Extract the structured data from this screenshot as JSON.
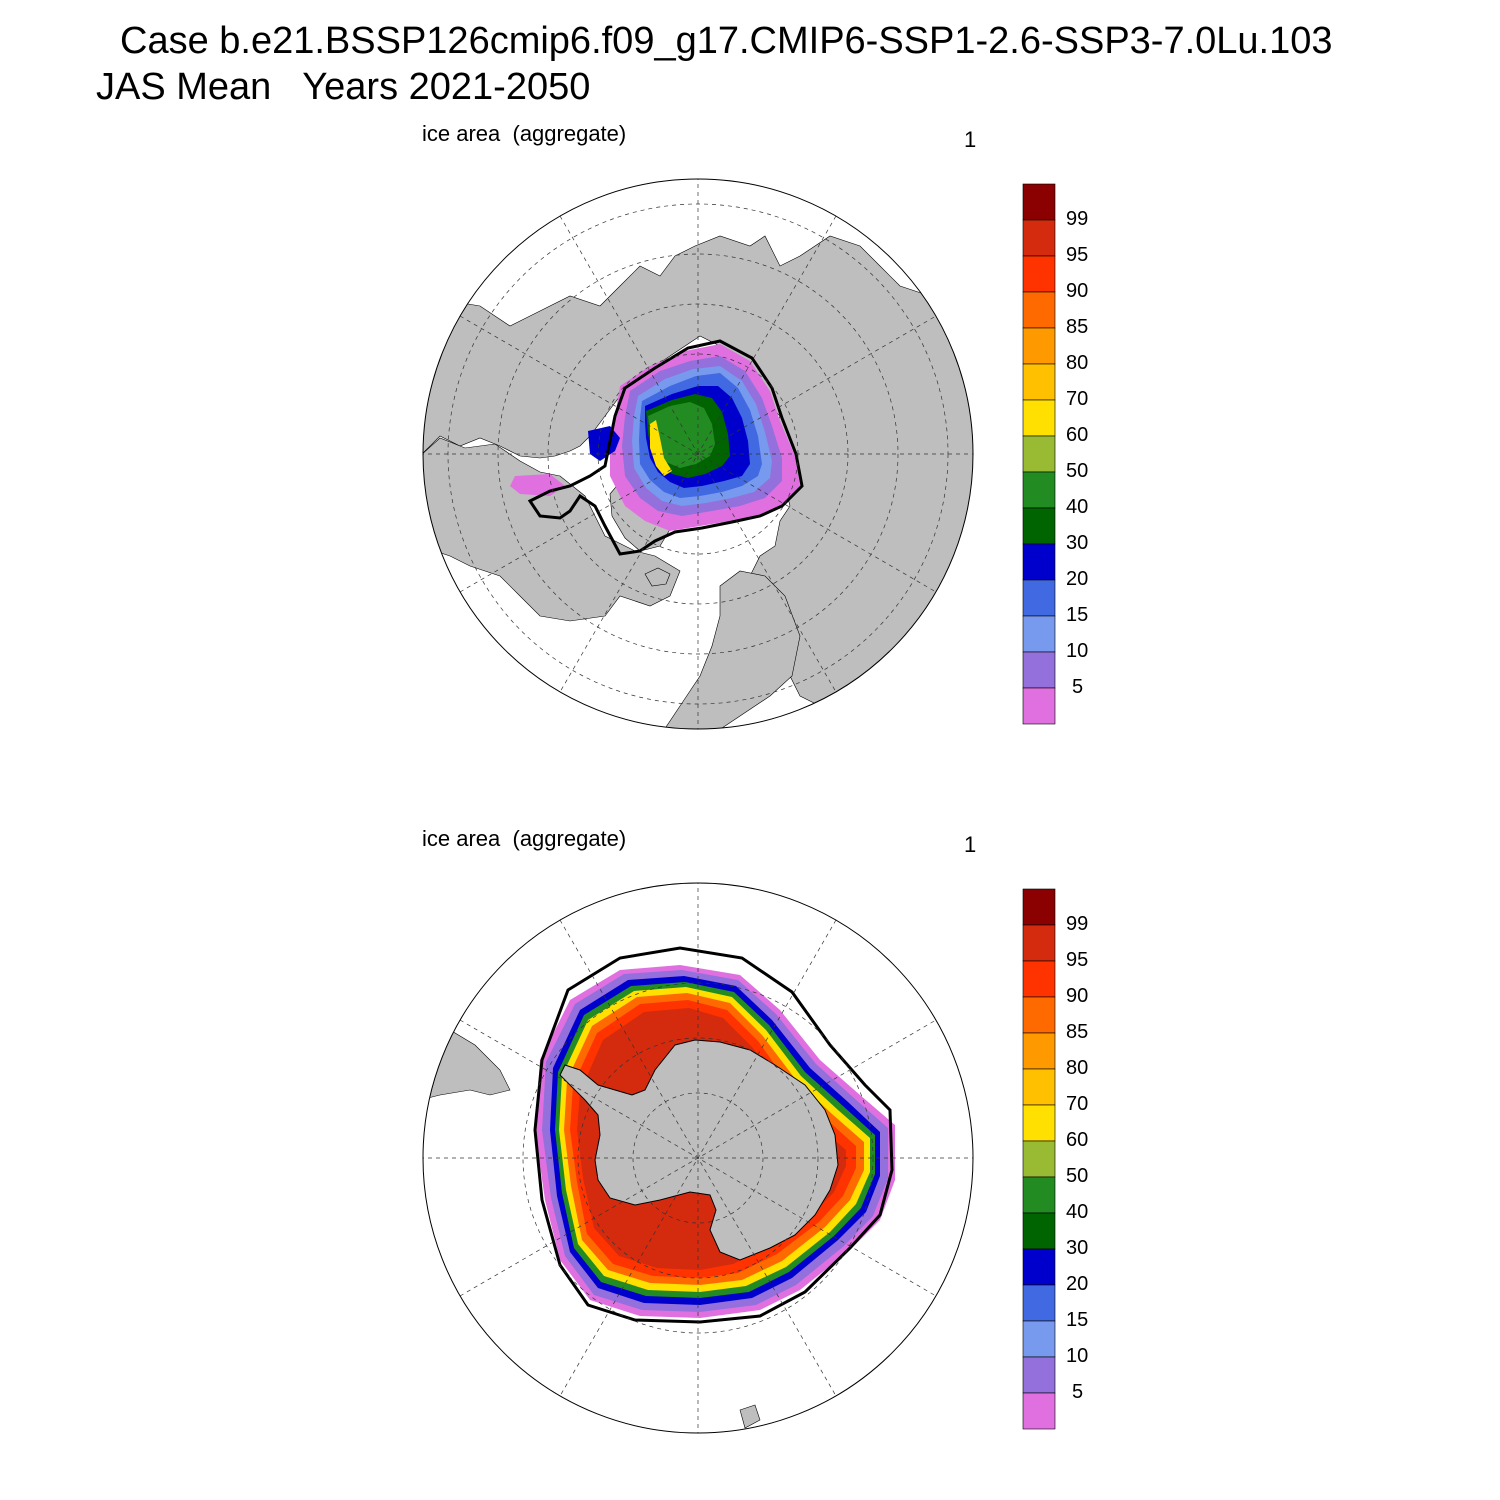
{
  "title": {
    "line1": "Case b.e21.BSSP126cmip6.f09_g17.CMIP6-SSP1-2.6-SSP3-7.0Lu.103",
    "line2": "JAS Mean   Years 2021-2050"
  },
  "panels": [
    {
      "id": "north",
      "label": "ice area  (aggregate)",
      "number": "1",
      "hemisphere": "Northern Hemisphere polar stereographic"
    },
    {
      "id": "south",
      "label": "ice area  (aggregate)",
      "number": "1",
      "hemisphere": "Southern Hemisphere polar stereographic"
    }
  ],
  "colorbar": {
    "levels": [
      "99",
      "95",
      "90",
      "85",
      "80",
      "70",
      "60",
      "50",
      "40",
      "30",
      "20",
      "15",
      "10",
      "5"
    ],
    "colors": [
      "#8b0000",
      "#d42a0e",
      "#ff3300",
      "#ff6a00",
      "#ff9900",
      "#ffc000",
      "#ffe000",
      "#99bb33",
      "#228b22",
      "#006400",
      "#0000cc",
      "#4169e1",
      "#7799ee",
      "#9370db",
      "#e070e0"
    ]
  },
  "colors": {
    "land": "#bebebe",
    "ocean": "#ffffff",
    "contour_line": "#000000"
  }
}
